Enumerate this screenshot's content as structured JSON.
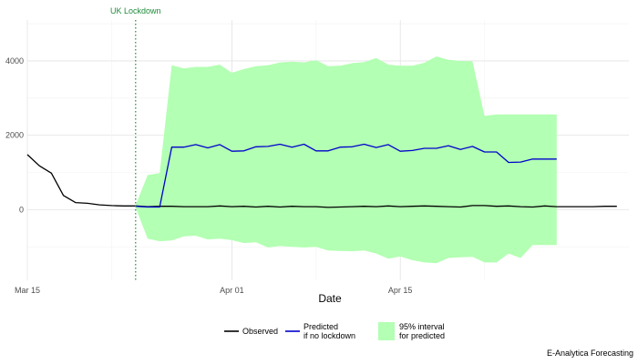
{
  "chart_data": {
    "type": "line",
    "xlabel": "Date",
    "ylabel": "",
    "xlim": [
      "2020-03-15",
      "2020-05-04"
    ],
    "ylim": [
      -1900,
      5100
    ],
    "x_ticks": [
      {
        "date": "2020-03-15",
        "label": "Mar 15"
      },
      {
        "date": "2020-04-01",
        "label": "Apr 01"
      },
      {
        "date": "2020-04-15",
        "label": "Apr 15"
      }
    ],
    "y_ticks": [
      0,
      2000,
      4000
    ],
    "grid": true,
    "legend_position": "bottom",
    "annotations": [
      {
        "type": "vline",
        "date": "2020-03-24",
        "label": "UK Lockdown",
        "color": "#1e8a3a",
        "style": "dotted"
      }
    ],
    "caption": "E-Analytica Forecasting",
    "series": [
      {
        "name": "Observed",
        "color": "#000000",
        "dates": [
          "2020-03-15",
          "2020-03-16",
          "2020-03-17",
          "2020-03-18",
          "2020-03-19",
          "2020-03-20",
          "2020-03-21",
          "2020-03-22",
          "2020-03-23",
          "2020-03-24",
          "2020-03-25",
          "2020-03-26",
          "2020-03-27",
          "2020-03-28",
          "2020-03-29",
          "2020-03-30",
          "2020-03-31",
          "2020-04-01",
          "2020-04-02",
          "2020-04-03",
          "2020-04-04",
          "2020-04-05",
          "2020-04-06",
          "2020-04-07",
          "2020-04-08",
          "2020-04-09",
          "2020-04-10",
          "2020-04-11",
          "2020-04-12",
          "2020-04-13",
          "2020-04-14",
          "2020-04-15",
          "2020-04-16",
          "2020-04-17",
          "2020-04-18",
          "2020-04-19",
          "2020-04-20",
          "2020-04-21",
          "2020-04-22",
          "2020-04-23",
          "2020-04-24",
          "2020-04-25",
          "2020-04-26",
          "2020-04-27",
          "2020-04-28",
          "2020-04-29",
          "2020-04-30",
          "2020-05-01",
          "2020-05-02",
          "2020-05-03"
        ],
        "values": [
          1480,
          1180,
          980,
          380,
          190,
          170,
          130,
          110,
          100,
          100,
          80,
          90,
          90,
          80,
          80,
          80,
          100,
          80,
          90,
          70,
          90,
          70,
          90,
          80,
          80,
          60,
          70,
          80,
          90,
          80,
          100,
          80,
          90,
          100,
          90,
          80,
          70,
          110,
          110,
          90,
          100,
          80,
          70,
          100,
          80,
          80,
          80,
          80,
          90,
          90
        ]
      },
      {
        "name": "Predicted",
        "name_line2": "if no lockdown",
        "color": "#0000cc",
        "dates": [
          "2020-03-24",
          "2020-03-25",
          "2020-03-26",
          "2020-03-27",
          "2020-03-28",
          "2020-03-29",
          "2020-03-30",
          "2020-03-31",
          "2020-04-01",
          "2020-04-02",
          "2020-04-03",
          "2020-04-04",
          "2020-04-05",
          "2020-04-06",
          "2020-04-07",
          "2020-04-08",
          "2020-04-09",
          "2020-04-10",
          "2020-04-11",
          "2020-04-12",
          "2020-04-13",
          "2020-04-14",
          "2020-04-15",
          "2020-04-16",
          "2020-04-17",
          "2020-04-18",
          "2020-04-19",
          "2020-04-20",
          "2020-04-21",
          "2020-04-22",
          "2020-04-23",
          "2020-04-24",
          "2020-04-25",
          "2020-04-26",
          "2020-04-27",
          "2020-04-28"
        ],
        "values": [
          90,
          70,
          70,
          1680,
          1680,
          1750,
          1660,
          1750,
          1570,
          1580,
          1690,
          1700,
          1760,
          1680,
          1760,
          1580,
          1580,
          1680,
          1690,
          1760,
          1670,
          1750,
          1570,
          1590,
          1650,
          1650,
          1720,
          1620,
          1700,
          1550,
          1550,
          1270,
          1280,
          1360,
          1360,
          1360
        ]
      }
    ],
    "interval": {
      "name": "95% interval",
      "name_line2": "for predicted",
      "color": "#b3ffb3",
      "dates": [
        "2020-03-24",
        "2020-03-25",
        "2020-03-26",
        "2020-03-27",
        "2020-03-28",
        "2020-03-29",
        "2020-03-30",
        "2020-03-31",
        "2020-04-01",
        "2020-04-02",
        "2020-04-03",
        "2020-04-04",
        "2020-04-05",
        "2020-04-06",
        "2020-04-07",
        "2020-04-08",
        "2020-04-09",
        "2020-04-10",
        "2020-04-11",
        "2020-04-12",
        "2020-04-13",
        "2020-04-14",
        "2020-04-15",
        "2020-04-16",
        "2020-04-17",
        "2020-04-18",
        "2020-04-19",
        "2020-04-20",
        "2020-04-21",
        "2020-04-22",
        "2020-04-23",
        "2020-04-24",
        "2020-04-25",
        "2020-04-26",
        "2020-04-27",
        "2020-04-28"
      ],
      "upper": [
        120,
        930,
        980,
        3880,
        3800,
        3840,
        3840,
        3900,
        3680,
        3780,
        3860,
        3880,
        3960,
        3980,
        3960,
        4020,
        3860,
        3870,
        3940,
        3970,
        4080,
        3900,
        3870,
        3870,
        3950,
        4120,
        4030,
        4000,
        3990,
        2520,
        2560,
        2560,
        2560,
        2560,
        2560,
        2560
      ],
      "lower": [
        50,
        -780,
        -850,
        -830,
        -720,
        -700,
        -800,
        -780,
        -820,
        -900,
        -880,
        -1020,
        -980,
        -1000,
        -1020,
        -1000,
        -1100,
        -1110,
        -1120,
        -1100,
        -1180,
        -1320,
        -1260,
        -1360,
        -1420,
        -1440,
        -1300,
        -1280,
        -1270,
        -1420,
        -1420,
        -1180,
        -1300,
        -950,
        -950,
        -950
      ]
    },
    "legend": [
      {
        "key": "observed",
        "label": "Observed"
      },
      {
        "key": "predicted",
        "label": "Predicted",
        "label_line2": "if no lockdown"
      },
      {
        "key": "interval",
        "label": "95% interval",
        "label_line2": "for predicted"
      }
    ]
  }
}
